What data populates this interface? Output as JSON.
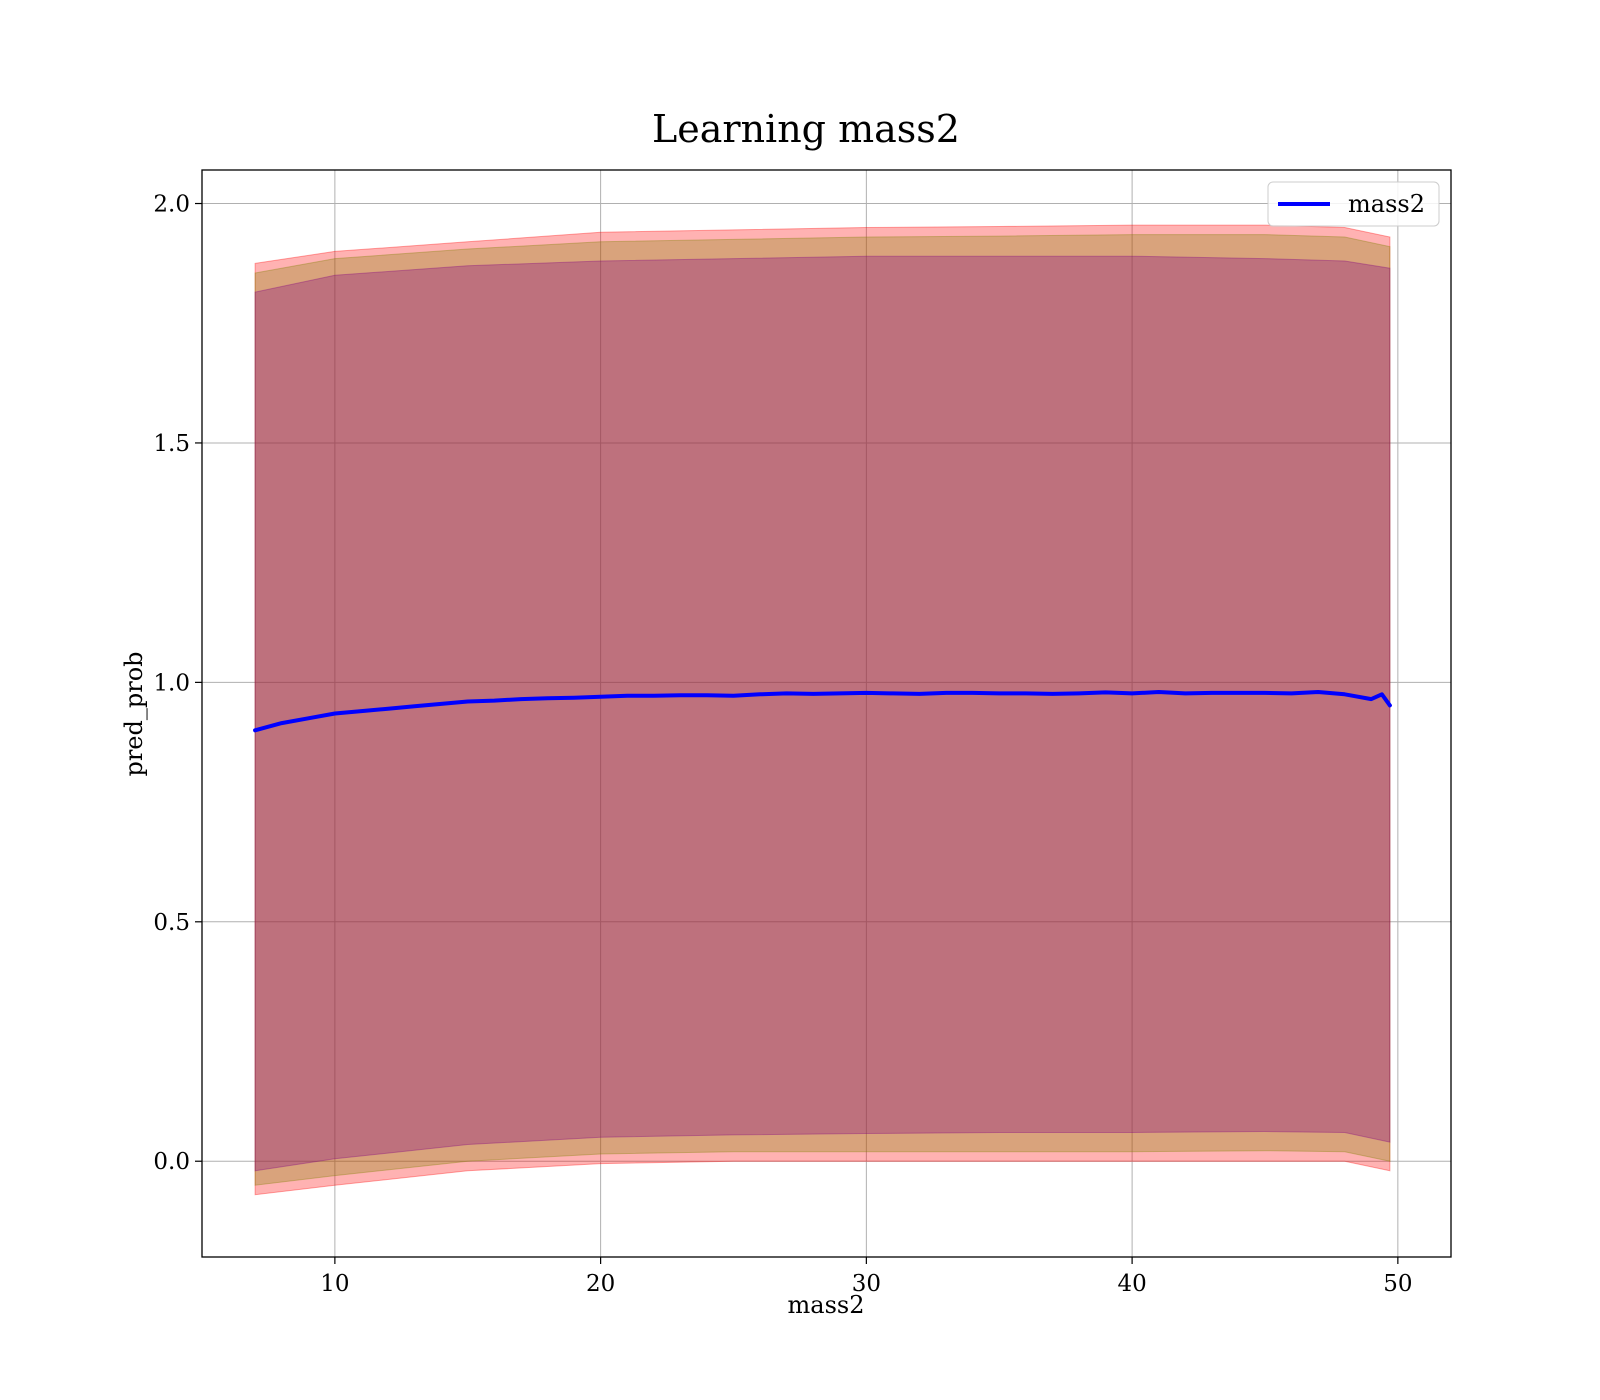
{
  "chart_data": {
    "type": "line",
    "title": "Learning mass2",
    "xlabel": "mass2",
    "ylabel": "pred_prob",
    "xlim": [
      5,
      52
    ],
    "ylim": [
      -0.2,
      2.07
    ],
    "xticks": [
      10,
      20,
      30,
      40,
      50
    ],
    "xtick_labels": [
      "10",
      "20",
      "30",
      "40",
      "50"
    ],
    "yticks": [
      0.0,
      0.5,
      1.0,
      1.5,
      2.0
    ],
    "ytick_labels": [
      "0.0",
      "0.5",
      "1.0",
      "1.5",
      "2.0"
    ],
    "grid": true,
    "legend": {
      "position": "top-right",
      "entries": [
        "mass2"
      ]
    },
    "series": [
      {
        "name": "mass2",
        "color": "#0000ff",
        "x": [
          7,
          8,
          9,
          10,
          11,
          12,
          13,
          14,
          15,
          16,
          17,
          18,
          19,
          20,
          21,
          22,
          23,
          24,
          25,
          26,
          27,
          28,
          29,
          30,
          31,
          32,
          33,
          34,
          35,
          36,
          37,
          38,
          39,
          40,
          41,
          42,
          43,
          44,
          45,
          46,
          47,
          48,
          49,
          49.4,
          49.7
        ],
        "values": [
          0.9,
          0.915,
          0.925,
          0.935,
          0.94,
          0.945,
          0.95,
          0.955,
          0.96,
          0.962,
          0.965,
          0.967,
          0.968,
          0.97,
          0.972,
          0.972,
          0.973,
          0.973,
          0.972,
          0.975,
          0.977,
          0.976,
          0.977,
          0.978,
          0.977,
          0.976,
          0.978,
          0.978,
          0.977,
          0.977,
          0.976,
          0.977,
          0.979,
          0.977,
          0.98,
          0.977,
          0.978,
          0.978,
          0.978,
          0.977,
          0.98,
          0.975,
          0.965,
          0.975,
          0.952
        ]
      }
    ],
    "bands": [
      {
        "color": "#ff0000",
        "opacity": 0.3,
        "x": [
          7,
          10,
          15,
          20,
          25,
          30,
          35,
          40,
          45,
          48,
          49.7
        ],
        "upper": [
          1.875,
          1.9,
          1.92,
          1.94,
          1.945,
          1.95,
          1.952,
          1.955,
          1.955,
          1.95,
          1.93
        ],
        "lower": [
          -0.07,
          -0.05,
          -0.02,
          -0.005,
          0.0,
          0.0,
          0.0,
          0.0,
          0.0,
          0.0,
          -0.02
        ]
      },
      {
        "color": "#808000",
        "opacity": 0.3,
        "x": [
          7,
          10,
          15,
          20,
          25,
          30,
          35,
          40,
          45,
          48,
          49.7
        ],
        "upper": [
          1.855,
          1.885,
          1.905,
          1.92,
          1.925,
          1.93,
          1.932,
          1.935,
          1.935,
          1.93,
          1.91
        ],
        "lower": [
          -0.05,
          -0.03,
          0.0,
          0.015,
          0.02,
          0.02,
          0.02,
          0.02,
          0.022,
          0.02,
          0.0
        ]
      },
      {
        "color": "#800080",
        "opacity": 0.3,
        "x": [
          7,
          10,
          15,
          20,
          25,
          30,
          35,
          40,
          45,
          48,
          49.7
        ],
        "upper": [
          1.815,
          1.85,
          1.87,
          1.88,
          1.885,
          1.89,
          1.89,
          1.89,
          1.885,
          1.88,
          1.865
        ],
        "lower": [
          -0.02,
          0.005,
          0.035,
          0.05,
          0.055,
          0.058,
          0.06,
          0.06,
          0.062,
          0.06,
          0.04
        ]
      }
    ]
  }
}
